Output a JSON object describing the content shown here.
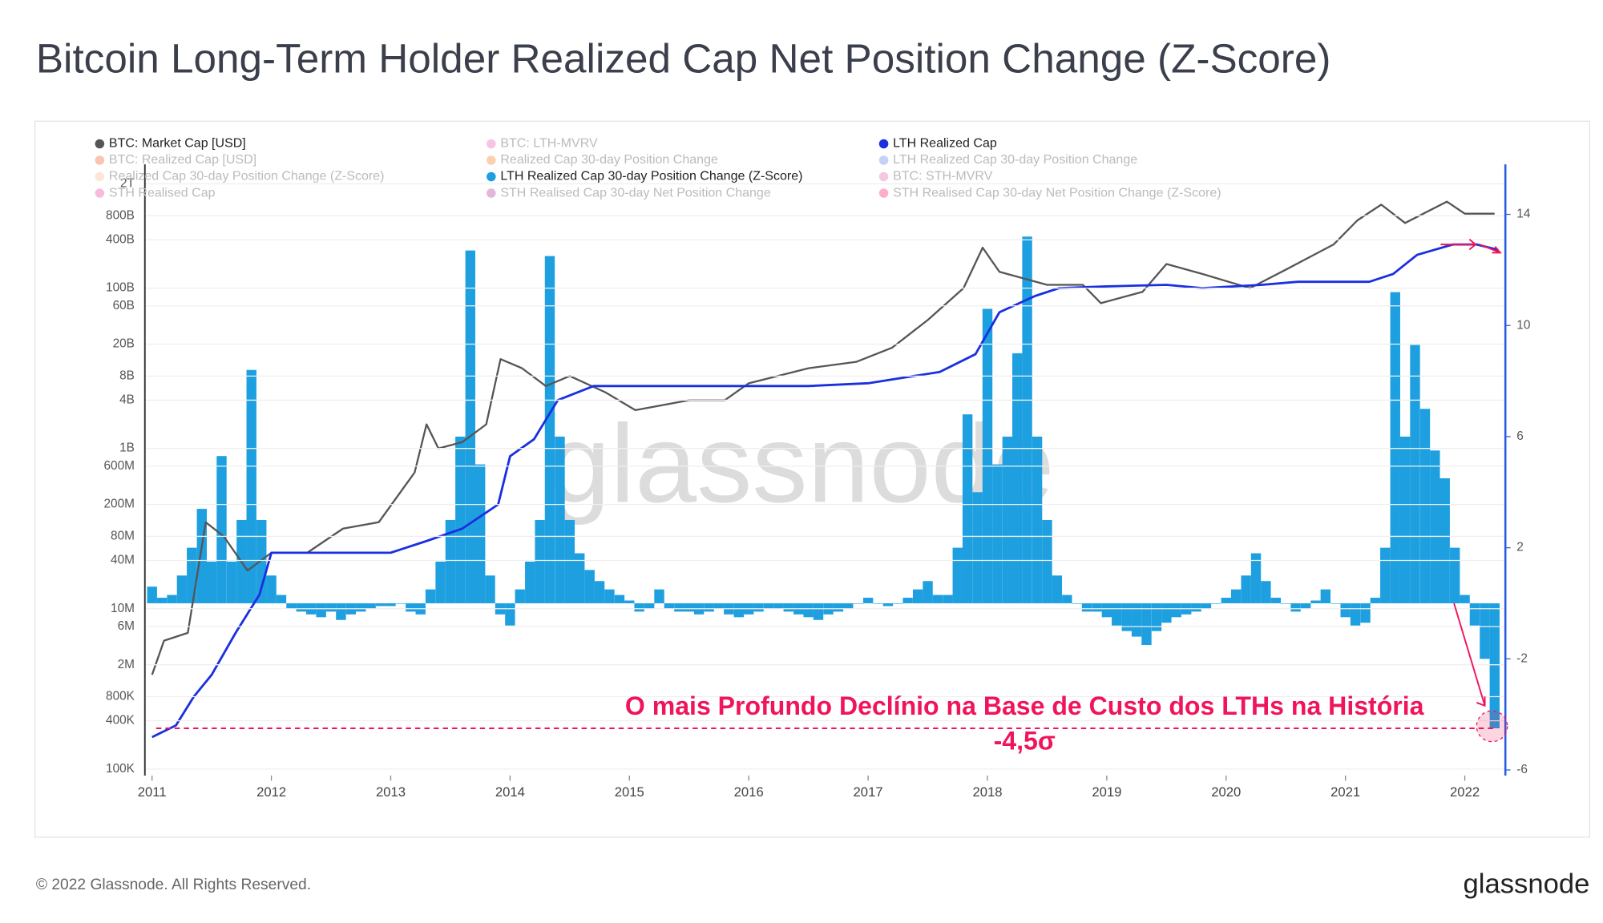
{
  "chart_data": {
    "type": "combo",
    "title": "Bitcoin Long-Term Holder Realized Cap Net Position Change (Z-Score)",
    "watermark": "glassnode",
    "footer": "© 2022 Glassnode. All Rights Reserved.",
    "logo": "glassnode",
    "xlim": [
      2010.94,
      2022.34
    ],
    "xticks": [
      2011,
      2012,
      2013,
      2014,
      2015,
      2016,
      2017,
      2018,
      2019,
      2020,
      2021,
      2022
    ],
    "ylog": true,
    "ylim": [
      83000,
      3500000000000
    ],
    "yticks": [
      {
        "value": 100000,
        "label": "100K"
      },
      {
        "value": 400000,
        "label": "400K"
      },
      {
        "value": 800000,
        "label": "800K"
      },
      {
        "value": 2000000,
        "label": "2M"
      },
      {
        "value": 6000000,
        "label": "6M"
      },
      {
        "value": 10000000,
        "label": "10M"
      },
      {
        "value": 40000000,
        "label": "40M"
      },
      {
        "value": 80000000,
        "label": "80M"
      },
      {
        "value": 200000000,
        "label": "200M"
      },
      {
        "value": 600000000,
        "label": "600M"
      },
      {
        "value": 1000000000,
        "label": "1B"
      },
      {
        "value": 4000000000,
        "label": "4B"
      },
      {
        "value": 8000000000,
        "label": "8B"
      },
      {
        "value": 20000000000,
        "label": "20B"
      },
      {
        "value": 60000000000,
        "label": "60B"
      },
      {
        "value": 100000000000,
        "label": "100B"
      },
      {
        "value": 400000000000,
        "label": "400B"
      },
      {
        "value": 800000000000,
        "label": "800B"
      },
      {
        "value": 2000000000000,
        "label": "2T"
      }
    ],
    "y2lim": [
      -6.2,
      15.8
    ],
    "y2ticks": [
      -6,
      -2,
      2,
      6,
      10,
      14
    ],
    "grid": true,
    "series": [
      {
        "name": "BTC: Market Cap [USD]",
        "color": "#555555",
        "active": true,
        "kind": "line",
        "axis": "y",
        "x": [
          2011.0,
          2011.1,
          2011.3,
          2011.45,
          2011.6,
          2011.8,
          2012.0,
          2012.3,
          2012.6,
          2012.9,
          2013.2,
          2013.3,
          2013.4,
          2013.6,
          2013.8,
          2013.92,
          2014.1,
          2014.3,
          2014.5,
          2014.8,
          2015.05,
          2015.5,
          2015.8,
          2016.0,
          2016.5,
          2016.9,
          2017.2,
          2017.5,
          2017.8,
          2017.96,
          2018.1,
          2018.5,
          2018.8,
          2018.95,
          2019.3,
          2019.5,
          2019.8,
          2020.2,
          2020.5,
          2020.9,
          2021.1,
          2021.3,
          2021.5,
          2021.85,
          2022.0,
          2022.25
        ],
        "values": [
          1500000,
          4000000,
          5000000,
          120000000,
          80000000,
          30000000,
          50000000,
          50000000,
          100000000,
          120000000,
          500000000,
          2000000000,
          1000000000,
          1200000000,
          2000000000,
          13000000000,
          10000000000,
          6000000000,
          8000000000,
          5000000000,
          3000000000,
          4000000000,
          4000000000,
          6500000000,
          10000000000,
          12000000000,
          18000000000,
          40000000000,
          100000000000,
          320000000000,
          160000000000,
          110000000000,
          110000000000,
          65000000000,
          90000000000,
          200000000000,
          150000000000,
          100000000000,
          170000000000,
          350000000000,
          700000000000,
          1100000000000,
          650000000000,
          1200000000000,
          850000000000,
          850000000000
        ]
      },
      {
        "name": "BTC: LTH-MVRV",
        "color": "#e85aa8",
        "active": false
      },
      {
        "name": "LTH Realized Cap",
        "color": "#1a2fe0",
        "active": true,
        "kind": "line",
        "axis": "y",
        "x": [
          2011.0,
          2011.2,
          2011.35,
          2011.5,
          2011.7,
          2011.9,
          2012.0,
          2012.5,
          2013.0,
          2013.3,
          2013.6,
          2013.9,
          2014.0,
          2014.2,
          2014.4,
          2014.7,
          2015.5,
          2016.5,
          2017.0,
          2017.6,
          2017.9,
          2018.1,
          2018.4,
          2018.6,
          2019.0,
          2019.5,
          2019.8,
          2020.3,
          2020.6,
          2021.2,
          2021.4,
          2021.6,
          2021.9,
          2022.1,
          2022.28
        ],
        "values": [
          250000,
          350000,
          800000,
          1500000,
          5000000,
          15000000,
          50000000,
          50000000,
          50000000,
          70000000,
          100000000,
          200000000,
          800000000,
          1300000000,
          4000000000,
          6000000000,
          6000000000,
          6000000000,
          6500000000,
          9000000000,
          15000000000,
          50000000000,
          80000000000,
          100000000000,
          105000000000,
          110000000000,
          100000000000,
          110000000000,
          120000000000,
          120000000000,
          150000000000,
          260000000000,
          350000000000,
          350000000000,
          300000000000
        ]
      },
      {
        "name": "BTC: Realized Cap [USD]",
        "color": "#f0551e",
        "active": false
      },
      {
        "name": "Realized Cap 30-day Position Change",
        "color": "#f07a1e",
        "active": false
      },
      {
        "name": "LTH Realized Cap 30-day Position Change",
        "color": "#5a7ae8",
        "active": false
      },
      {
        "name": "Realized Cap 30-day Position Change (Z-Score)",
        "color": "#f5b890",
        "active": false
      },
      {
        "name": "LTH Realized Cap 30-day Position Change (Z-Score)",
        "color": "#1ea0e0",
        "active": true,
        "kind": "bar",
        "axis": "y2",
        "x": [
          2011.0,
          2011.083,
          2011.167,
          2011.25,
          2011.333,
          2011.417,
          2011.5,
          2011.583,
          2011.667,
          2011.75,
          2011.833,
          2011.917,
          2012.0,
          2012.083,
          2012.167,
          2012.25,
          2012.333,
          2012.417,
          2012.5,
          2012.583,
          2012.667,
          2012.75,
          2012.833,
          2012.917,
          2013.0,
          2013.083,
          2013.167,
          2013.25,
          2013.333,
          2013.417,
          2013.5,
          2013.583,
          2013.667,
          2013.75,
          2013.833,
          2013.917,
          2014.0,
          2014.083,
          2014.167,
          2014.25,
          2014.333,
          2014.417,
          2014.5,
          2014.583,
          2014.667,
          2014.75,
          2014.833,
          2014.917,
          2015.0,
          2015.083,
          2015.167,
          2015.25,
          2015.333,
          2015.417,
          2015.5,
          2015.583,
          2015.667,
          2015.75,
          2015.833,
          2015.917,
          2016.0,
          2016.083,
          2016.167,
          2016.25,
          2016.333,
          2016.417,
          2016.5,
          2016.583,
          2016.667,
          2016.75,
          2016.833,
          2016.917,
          2017.0,
          2017.083,
          2017.167,
          2017.25,
          2017.333,
          2017.417,
          2017.5,
          2017.583,
          2017.667,
          2017.75,
          2017.833,
          2017.917,
          2018.0,
          2018.083,
          2018.167,
          2018.25,
          2018.333,
          2018.417,
          2018.5,
          2018.583,
          2018.667,
          2018.75,
          2018.833,
          2018.917,
          2019.0,
          2019.083,
          2019.167,
          2019.25,
          2019.333,
          2019.417,
          2019.5,
          2019.583,
          2019.667,
          2019.75,
          2019.833,
          2019.917,
          2020.0,
          2020.083,
          2020.167,
          2020.25,
          2020.333,
          2020.417,
          2020.5,
          2020.583,
          2020.667,
          2020.75,
          2020.833,
          2020.917,
          2021.0,
          2021.083,
          2021.167,
          2021.25,
          2021.333,
          2021.417,
          2021.5,
          2021.583,
          2021.667,
          2021.75,
          2021.833,
          2021.917,
          2022.0,
          2022.083,
          2022.167,
          2022.25
        ],
        "values": [
          0.6,
          0.2,
          0.3,
          1.0,
          2.0,
          3.4,
          1.5,
          5.3,
          1.5,
          3.0,
          8.4,
          3.0,
          1.0,
          0.3,
          -0.2,
          -0.3,
          -0.4,
          -0.5,
          -0.3,
          -0.6,
          -0.4,
          -0.3,
          -0.2,
          -0.1,
          -0.1,
          0.0,
          -0.3,
          -0.4,
          0.5,
          1.5,
          3.0,
          6.0,
          12.7,
          5.0,
          1.0,
          -0.4,
          -0.8,
          0.5,
          1.5,
          3.0,
          12.5,
          6.0,
          3.0,
          1.8,
          1.2,
          0.8,
          0.5,
          0.3,
          0.1,
          -0.3,
          -0.2,
          0.5,
          -0.2,
          -0.3,
          -0.3,
          -0.4,
          -0.3,
          -0.2,
          -0.4,
          -0.5,
          -0.4,
          -0.3,
          -0.2,
          -0.2,
          -0.3,
          -0.4,
          -0.5,
          -0.6,
          -0.4,
          -0.3,
          -0.2,
          0.0,
          0.2,
          0.0,
          -0.1,
          0.0,
          0.2,
          0.5,
          0.8,
          0.3,
          0.3,
          2.0,
          6.8,
          4.0,
          10.6,
          5.0,
          6.0,
          9.0,
          13.2,
          6.0,
          3.0,
          1.0,
          0.3,
          0.0,
          -0.3,
          -0.3,
          -0.5,
          -0.8,
          -1.0,
          -1.2,
          -1.5,
          -1.0,
          -0.7,
          -0.5,
          -0.4,
          -0.3,
          -0.2,
          0.0,
          0.2,
          0.5,
          1.0,
          1.8,
          0.8,
          0.2,
          0.0,
          -0.3,
          -0.2,
          0.1,
          0.5,
          0.0,
          -0.5,
          -0.8,
          -0.7,
          0.2,
          2.0,
          11.2,
          6.0,
          9.3,
          7.0,
          5.5,
          4.5,
          2.0,
          0.3,
          -0.8,
          -2.0,
          -4.5
        ]
      },
      {
        "name": "BTC: STH-MVRV",
        "color": "#e060a0",
        "active": false
      },
      {
        "name": "STH Realised Cap",
        "color": "#e8409a",
        "active": false
      },
      {
        "name": "STH Realised Cap 30-day Net Position Change",
        "color": "#b0309a",
        "active": false
      },
      {
        "name": "STH Realised Cap 30-day Net Position Change (Z-Score)",
        "color": "#f01a6a",
        "active": false
      }
    ],
    "annotation": {
      "text": "O mais Profundo Declínio na Base de Custo dos LTHs na História",
      "value": -4.5,
      "value_label": "-4,5σ",
      "color": "#f0145a"
    }
  }
}
